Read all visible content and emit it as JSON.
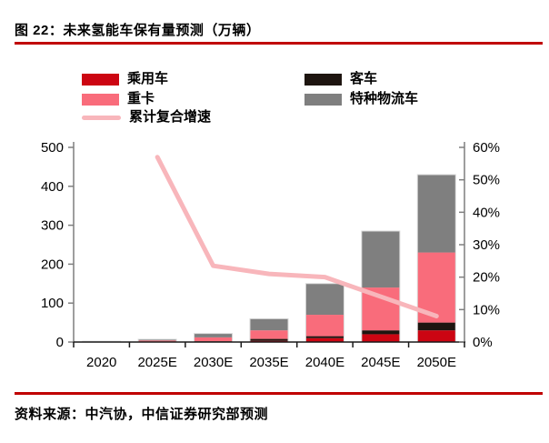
{
  "header": {
    "title": "图 22：未来氢能车保有量预测（万辆）"
  },
  "legend": {
    "items": [
      {
        "label": "乘用车",
        "color": "#CC0512",
        "type": "bar"
      },
      {
        "label": "客车",
        "color": "#1E1510",
        "type": "bar"
      },
      {
        "label": "重卡",
        "color": "#F96C7B",
        "type": "bar"
      },
      {
        "label": "特种物流车",
        "color": "#7F7F7F",
        "type": "bar"
      },
      {
        "label": "累计复合增速",
        "color": "#F8B6BB",
        "type": "line"
      }
    ]
  },
  "chart_data": {
    "type": "bar",
    "stacked": true,
    "title": "未来氢能车保有量预测（万辆）",
    "categories": [
      "2020",
      "2025E",
      "2030E",
      "2035E",
      "2040E",
      "2045E",
      "2050E"
    ],
    "series": [
      {
        "name": "乘用车",
        "color": "#CC0512",
        "values": [
          0.1,
          0.5,
          1,
          3,
          10,
          20,
          30
        ]
      },
      {
        "name": "客车",
        "color": "#1E1510",
        "values": [
          0.4,
          0.5,
          1,
          5,
          5,
          10,
          20
        ]
      },
      {
        "name": "重卡",
        "color": "#F96C7B",
        "values": [
          0.5,
          3,
          10,
          22,
          55,
          110,
          180
        ]
      },
      {
        "name": "特种物流车",
        "color": "#7F7F7F",
        "values": [
          1,
          3,
          10,
          30,
          80,
          145,
          200
        ]
      }
    ],
    "line_series": {
      "name": "累计复合增速",
      "color": "#F8B6BB",
      "axis": "right",
      "unit": "%",
      "values": [
        null,
        57,
        23.5,
        21,
        20,
        14,
        8
      ]
    },
    "left_axis": {
      "min": 0,
      "max": 500,
      "step": 100,
      "ticks": [
        "0",
        "100",
        "200",
        "300",
        "400",
        "500"
      ]
    },
    "right_axis": {
      "min": 0,
      "max": 60,
      "step": 10,
      "ticks": [
        "0%",
        "10%",
        "20%",
        "30%",
        "40%",
        "50%",
        "60%"
      ]
    },
    "grid": false,
    "legend_position": "top",
    "bar_outline_color": "#D9D9D9"
  },
  "footer": {
    "source": "资料来源：中汽协，中信证券研究部预测"
  },
  "colors": {
    "accent_rule": "#C00000",
    "axis_y": "#7F7F7F",
    "axis_x": "#1A1A1A",
    "text": "#000000"
  }
}
